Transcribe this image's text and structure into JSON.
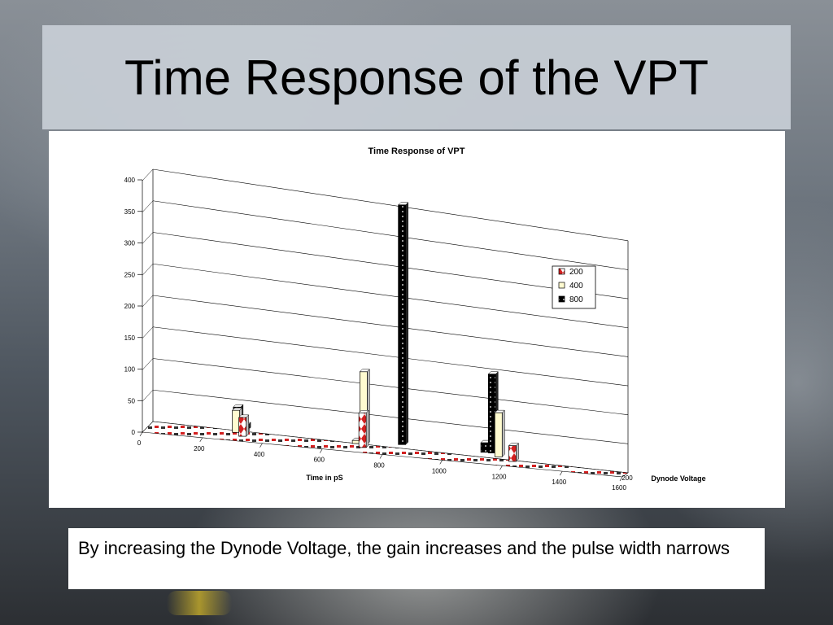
{
  "slide": {
    "title": "Time Response of the VPT",
    "caption": "By increasing the Dynode Voltage, the gain increases and the pulse width narrows"
  },
  "chart_data": {
    "type": "bar",
    "title": "Time Response of VPT",
    "xlabel": "Time in pS",
    "zlabel": "Dynode Voltage",
    "z_tick": "200",
    "ylim": [
      0,
      400
    ],
    "y_ticks": [
      "0",
      "50",
      "100",
      "150",
      "200",
      "250",
      "300",
      "350",
      "400"
    ],
    "x_ticks": [
      "0",
      "200",
      "400",
      "600",
      "800",
      "1000",
      "1200",
      "1400",
      "1600"
    ],
    "xlim": [
      0,
      1600
    ],
    "legend_position": "right",
    "series": [
      {
        "name": "200",
        "color": "#d32020",
        "pattern": "diamonds",
        "points": [
          [
            300,
            30
          ],
          [
            700,
            55
          ],
          [
            1200,
            25
          ]
        ]
      },
      {
        "name": "400",
        "color": "#fffbd0",
        "pattern": "plain",
        "points": [
          [
            300,
            35
          ],
          [
            325,
            5
          ],
          [
            700,
            5
          ],
          [
            725,
            115
          ],
          [
            1175,
            70
          ]
        ]
      },
      {
        "name": "800",
        "color": "#000000",
        "pattern": "dots",
        "points": [
          [
            325,
            35
          ],
          [
            350,
            8
          ],
          [
            875,
            380
          ],
          [
            1150,
            15
          ],
          [
            1175,
            125
          ]
        ]
      }
    ]
  }
}
